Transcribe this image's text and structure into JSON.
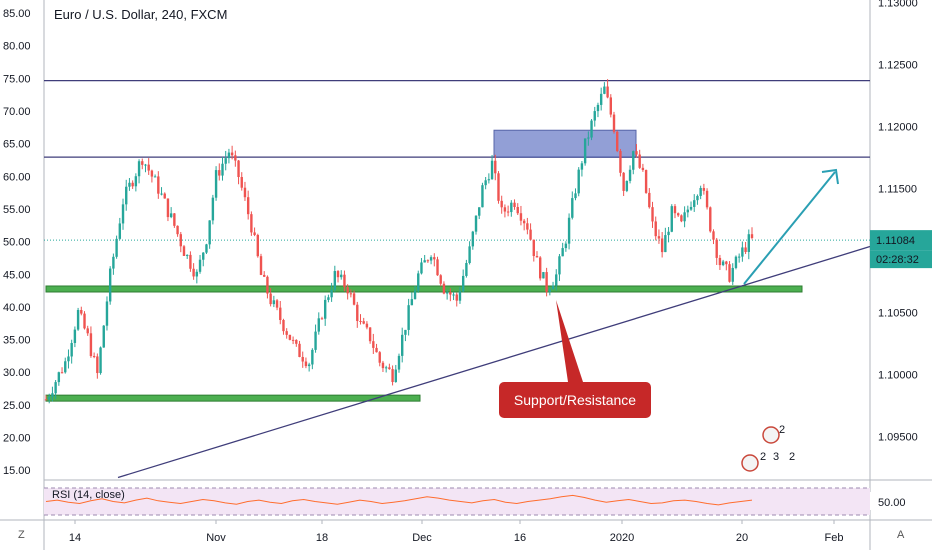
{
  "header": {
    "title": "Euro / U.S. Dollar, 240, FXCM"
  },
  "price_badges": {
    "price": "1.11084",
    "countdown": "02:28:32"
  },
  "callout": {
    "label": "Support/Resistance"
  },
  "rsi": {
    "label": "RSI (14, close)",
    "level_label": "50.00"
  },
  "corners": {
    "left": "Z",
    "right": "A"
  },
  "event_badges": [
    "2",
    "2",
    "3",
    "2"
  ],
  "colors": {
    "up": "#26a69a",
    "down": "#ef5350",
    "support": "#4caf50",
    "resistance_line": "#3f3d7a",
    "box": "#7f8fd0",
    "callout": "#c62828",
    "arrow": "#2a9fb3",
    "rsi_line": "#ff6d2e",
    "rsi_band": "#f3e5f5"
  },
  "chart_data": {
    "type": "candlestick",
    "title": "Euro / U.S. Dollar, 240, FXCM",
    "left_axis": {
      "ticks": [
        "85.00",
        "80.00",
        "75.00",
        "70.00",
        "65.00",
        "60.00",
        "55.00",
        "50.00",
        "45.00",
        "40.00",
        "35.00",
        "30.00",
        "25.00",
        "20.00",
        "15.00"
      ],
      "range": [
        13.5,
        87
      ]
    },
    "right_axis": {
      "ticks": [
        "1.13000",
        "1.12500",
        "1.12000",
        "1.11500",
        "1.11084",
        "1.10500",
        "1.10000",
        "1.09500"
      ],
      "range": [
        1.0915,
        1.1302
      ]
    },
    "x_ticks": [
      "14",
      "Nov",
      "18",
      "Dec",
      "16",
      "2020",
      "20",
      "Feb"
    ],
    "last_price": 1.11084,
    "horizontal_lines": [
      1.1237,
      1.11753
    ],
    "support_zones": [
      1.1069,
      1.0981
    ],
    "trendline": {
      "from": [
        "14",
        1.0917
      ],
      "to": [
        "Feb",
        1.11
      ]
    },
    "price_path": [
      [
        0,
        1.098
      ],
      [
        6,
        1.101
      ],
      [
        10,
        1.105
      ],
      [
        13,
        1.103
      ],
      [
        16,
        1.1
      ],
      [
        20,
        1.108
      ],
      [
        24,
        1.114
      ],
      [
        30,
        1.1175
      ],
      [
        35,
        1.115
      ],
      [
        40,
        1.112
      ],
      [
        43,
        1.11
      ],
      [
        47,
        1.108
      ],
      [
        50,
        1.111
      ],
      [
        53,
        1.116
      ],
      [
        57,
        1.118
      ],
      [
        60,
        1.116
      ],
      [
        64,
        1.112
      ],
      [
        67,
        1.108
      ],
      [
        70,
        1.106
      ],
      [
        74,
        1.104
      ],
      [
        78,
        1.102
      ],
      [
        82,
        1.101
      ],
      [
        86,
        1.105
      ],
      [
        90,
        1.108
      ],
      [
        94,
        1.107
      ],
      [
        98,
        1.104
      ],
      [
        101,
        1.103
      ],
      [
        104,
        1.101
      ],
      [
        108,
        1.1
      ],
      [
        112,
        1.104
      ],
      [
        116,
        1.108
      ],
      [
        120,
        1.11
      ],
      [
        124,
        1.107
      ],
      [
        128,
        1.106
      ],
      [
        132,
        1.11
      ],
      [
        136,
        1.115
      ],
      [
        139,
        1.117
      ],
      [
        142,
        1.113
      ],
      [
        146,
        1.114
      ],
      [
        150,
        1.112
      ],
      [
        153,
        1.109
      ],
      [
        156,
        1.107
      ],
      [
        159,
        1.108
      ],
      [
        162,
        1.111
      ],
      [
        165,
        1.115
      ],
      [
        168,
        1.1185
      ],
      [
        171,
        1.121
      ],
      [
        174,
        1.123
      ],
      [
        177,
        1.12
      ],
      [
        180,
        1.115
      ],
      [
        183,
        1.118
      ],
      [
        186,
        1.116
      ],
      [
        189,
        1.112
      ],
      [
        192,
        1.11
      ],
      [
        195,
        1.113
      ],
      [
        198,
        1.112
      ],
      [
        201,
        1.114
      ],
      [
        204,
        1.1155
      ],
      [
        207,
        1.112
      ],
      [
        210,
        1.109
      ],
      [
        213,
        1.108
      ],
      [
        216,
        1.1095
      ],
      [
        219,
        1.1108
      ]
    ],
    "rsi_path": [
      50,
      52,
      49,
      47,
      51,
      54,
      50,
      48,
      52,
      55,
      51,
      49,
      47,
      50,
      53,
      51,
      48,
      46,
      50,
      52,
      49,
      47,
      51,
      53,
      50,
      48,
      46,
      49,
      52,
      50,
      47,
      49,
      51,
      54,
      57,
      55,
      52,
      50,
      48,
      51,
      53,
      49,
      47,
      50,
      52,
      54,
      57,
      59,
      56,
      52,
      49,
      51,
      53,
      50,
      47,
      48,
      51,
      52,
      50,
      47,
      45,
      48,
      50,
      52
    ]
  }
}
